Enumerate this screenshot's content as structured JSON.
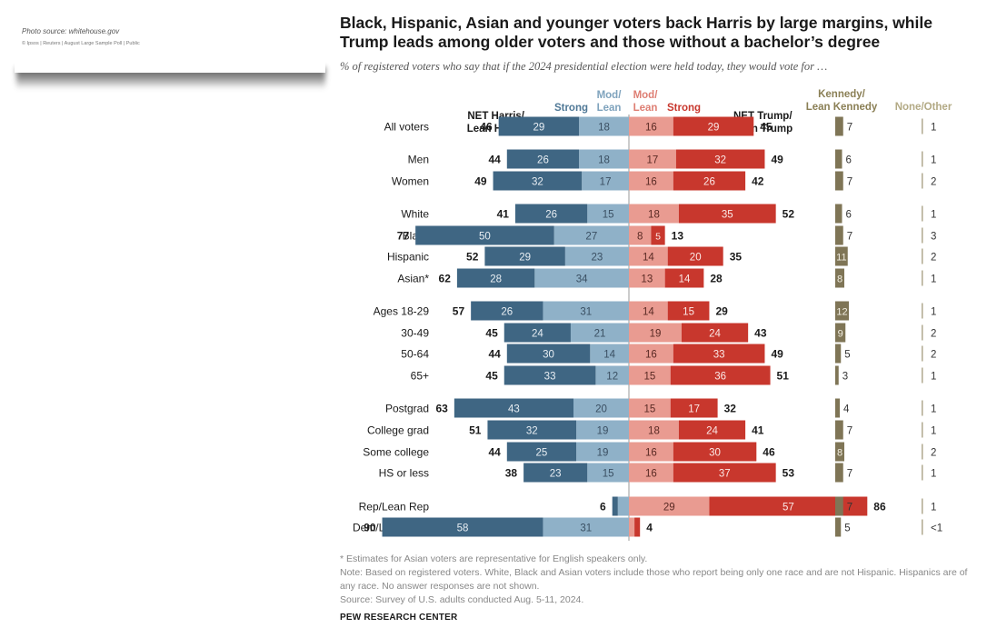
{
  "photo": {
    "source": "Photo source: whitehouse.gov",
    "credit": "© Ipsos | Reuters | August Large Sample Poll | Public"
  },
  "title": "Black, Hispanic, Asian and younger voters back Harris by large margins, while Trump leads among older voters and those without a bachelor’s degree",
  "subtitle": "% of registered voters who say that if the 2024 presidential election were held today, they would vote for …",
  "headers": {
    "strong_harris": "Strong",
    "mod_lean_harris": [
      "Mod/",
      "Lean"
    ],
    "mod_lean_trump": [
      "Mod/",
      "Lean"
    ],
    "strong_trump": "Strong",
    "net_harris": [
      "NET Harris/",
      "Lean Harris"
    ],
    "net_trump": [
      "NET Trump/",
      "Lean Trump"
    ],
    "kennedy": [
      "Kennedy/",
      "Lean Kennedy"
    ],
    "none_other": "None/Other"
  },
  "colors": {
    "harris_strong": "#3f6683",
    "harris_lean": "#8fb1c8",
    "trump_lean": "#e99b91",
    "trump_strong": "#c8372d",
    "kennedy": "#7f7556",
    "none_other": "#b0a98f",
    "harris_header": "#4f7896",
    "harris_lean_header": "#7fa3bd",
    "trump_lean_header": "#de7e73",
    "trump_strong_header": "#c8372d",
    "kennedy_header": "#8a7f55",
    "none_header": "#b3aa85"
  },
  "chart_data": {
    "type": "bar",
    "series_order": [
      "harris_strong",
      "harris_lean",
      "trump_lean",
      "trump_strong",
      "net_harris",
      "net_trump",
      "kennedy",
      "none_other"
    ],
    "rows": [
      {
        "label": "All voters",
        "harris_strong": 29,
        "harris_lean": 18,
        "trump_lean": 16,
        "trump_strong": 29,
        "net_harris": 46,
        "net_trump": 45,
        "kennedy": 7,
        "none_other": "1"
      },
      {
        "label": "Men",
        "harris_strong": 26,
        "harris_lean": 18,
        "trump_lean": 17,
        "trump_strong": 32,
        "net_harris": 44,
        "net_trump": 49,
        "kennedy": 6,
        "none_other": "1"
      },
      {
        "label": "Women",
        "harris_strong": 32,
        "harris_lean": 17,
        "trump_lean": 16,
        "trump_strong": 26,
        "net_harris": 49,
        "net_trump": 42,
        "kennedy": 7,
        "none_other": "2"
      },
      {
        "label": "White",
        "harris_strong": 26,
        "harris_lean": 15,
        "trump_lean": 18,
        "trump_strong": 35,
        "net_harris": 41,
        "net_trump": 52,
        "kennedy": 6,
        "none_other": "1"
      },
      {
        "label": "Black",
        "harris_strong": 50,
        "harris_lean": 27,
        "trump_lean": 8,
        "trump_strong": 5,
        "net_harris": 77,
        "net_trump": 13,
        "kennedy": 7,
        "none_other": "3"
      },
      {
        "label": "Hispanic",
        "harris_strong": 29,
        "harris_lean": 23,
        "trump_lean": 14,
        "trump_strong": 20,
        "net_harris": 52,
        "net_trump": 35,
        "kennedy": 11,
        "none_other": "2"
      },
      {
        "label": "Asian*",
        "harris_strong": 28,
        "harris_lean": 34,
        "trump_lean": 13,
        "trump_strong": 14,
        "net_harris": 62,
        "net_trump": 28,
        "kennedy": 8,
        "none_other": "1"
      },
      {
        "label": "Ages 18-29",
        "harris_strong": 26,
        "harris_lean": 31,
        "trump_lean": 14,
        "trump_strong": 15,
        "net_harris": 57,
        "net_trump": 29,
        "kennedy": 12,
        "none_other": "1"
      },
      {
        "label": "30-49",
        "harris_strong": 24,
        "harris_lean": 21,
        "trump_lean": 19,
        "trump_strong": 24,
        "net_harris": 45,
        "net_trump": 43,
        "kennedy": 9,
        "none_other": "2"
      },
      {
        "label": "50-64",
        "harris_strong": 30,
        "harris_lean": 14,
        "trump_lean": 16,
        "trump_strong": 33,
        "net_harris": 44,
        "net_trump": 49,
        "kennedy": 5,
        "none_other": "2"
      },
      {
        "label": "65+",
        "harris_strong": 33,
        "harris_lean": 12,
        "trump_lean": 15,
        "trump_strong": 36,
        "net_harris": 45,
        "net_trump": 51,
        "kennedy": 3,
        "none_other": "1"
      },
      {
        "label": "Postgrad",
        "harris_strong": 43,
        "harris_lean": 20,
        "trump_lean": 15,
        "trump_strong": 17,
        "net_harris": 63,
        "net_trump": 32,
        "kennedy": 4,
        "none_other": "1"
      },
      {
        "label": "College grad",
        "harris_strong": 32,
        "harris_lean": 19,
        "trump_lean": 18,
        "trump_strong": 24,
        "net_harris": 51,
        "net_trump": 41,
        "kennedy": 7,
        "none_other": "1"
      },
      {
        "label": "Some college",
        "harris_strong": 25,
        "harris_lean": 19,
        "trump_lean": 16,
        "trump_strong": 30,
        "net_harris": 44,
        "net_trump": 46,
        "kennedy": 8,
        "none_other": "2"
      },
      {
        "label": "HS or less",
        "harris_strong": 23,
        "harris_lean": 15,
        "trump_lean": 16,
        "trump_strong": 37,
        "net_harris": 38,
        "net_trump": 53,
        "kennedy": 7,
        "none_other": "1"
      },
      {
        "label": "Rep/Lean Rep",
        "harris_strong": 2,
        "harris_lean": 4,
        "trump_lean": 29,
        "trump_strong": 57,
        "net_harris": 6,
        "net_trump": 86,
        "kennedy": 7,
        "none_other": "1"
      },
      {
        "label": "Dem/Lean Dem",
        "harris_strong": 58,
        "harris_lean": 31,
        "trump_lean": 2,
        "trump_strong": 2,
        "net_harris": 90,
        "net_trump": 4,
        "kennedy": 5,
        "none_other": "<1"
      }
    ]
  },
  "footnotes": {
    "asian": "* Estimates for Asian voters are representative for English speakers only.",
    "note": "Note: Based on registered voters. White, Black and Asian voters include those who report being only one race and are not Hispanic. Hispanics are of any race. No answer responses are not shown.",
    "source": "Source: Survey of U.S. adults conducted Aug. 5-11, 2024.",
    "org": "PEW RESEARCH CENTER"
  }
}
